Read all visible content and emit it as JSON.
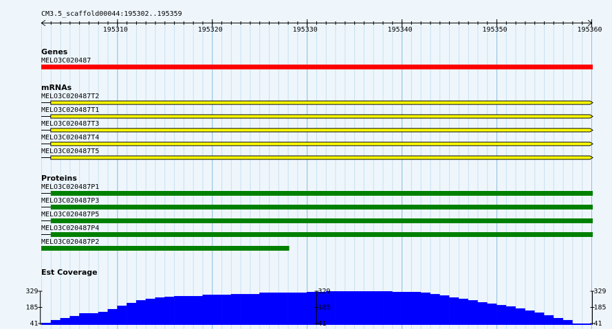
{
  "header": {
    "title": "CM3.5_scaffold00044:195302..195359"
  },
  "scale": {
    "xlim": [
      195302,
      195360
    ],
    "ticks": [
      195310,
      195320,
      195330,
      195340,
      195350,
      195360
    ]
  },
  "tracks": [
    {
      "label": "Genes",
      "features": [
        {
          "name": "MELO3C020487",
          "start": 195302,
          "end": 195360,
          "color": "#ff0000"
        }
      ]
    },
    {
      "label": "mRNAs",
      "features": [
        {
          "name": "MELO3C020487T2",
          "start": 195303,
          "end": 195360,
          "color": "#ffff00"
        },
        {
          "name": "MELO3C020487T1",
          "start": 195303,
          "end": 195360,
          "color": "#ffff00"
        },
        {
          "name": "MELO3C020487T3",
          "start": 195303,
          "end": 195360,
          "color": "#ffff00"
        },
        {
          "name": "MELO3C020487T4",
          "start": 195303,
          "end": 195360,
          "color": "#ffff00"
        },
        {
          "name": "MELO3C020487T5",
          "start": 195303,
          "end": 195360,
          "color": "#ffff00"
        }
      ]
    },
    {
      "label": "Proteins",
      "features": [
        {
          "name": "MELO3C020487P1",
          "start": 195303,
          "end": 195360,
          "color": "#008000"
        },
        {
          "name": "MELO3C020487P3",
          "start": 195303,
          "end": 195360,
          "color": "#008000"
        },
        {
          "name": "MELO3C020487P5",
          "start": 195303,
          "end": 195360,
          "color": "#008000"
        },
        {
          "name": "MELO3C020487P4",
          "start": 195303,
          "end": 195360,
          "color": "#008000"
        },
        {
          "name": "MELO3C020487P2",
          "start": 195302,
          "end": 195328,
          "color": "#008000"
        }
      ]
    }
  ],
  "coverage": {
    "label": "Est Coverage",
    "ylim": [
      41,
      329
    ],
    "yticks": [
      329,
      185,
      41
    ],
    "color": "#0000ff",
    "values": [
      47,
      72,
      90,
      108,
      133,
      133,
      145,
      170,
      200,
      225,
      249,
      262,
      274,
      280,
      286,
      286,
      286,
      298,
      298,
      298,
      304,
      304,
      304,
      317,
      317,
      317,
      317,
      317,
      323,
      323,
      329,
      329,
      329,
      329,
      329,
      329,
      329,
      323,
      323,
      323,
      317,
      304,
      292,
      274,
      262,
      249,
      231,
      219,
      206,
      194,
      176,
      157,
      139,
      115,
      90,
      72,
      41,
      41
    ]
  }
}
